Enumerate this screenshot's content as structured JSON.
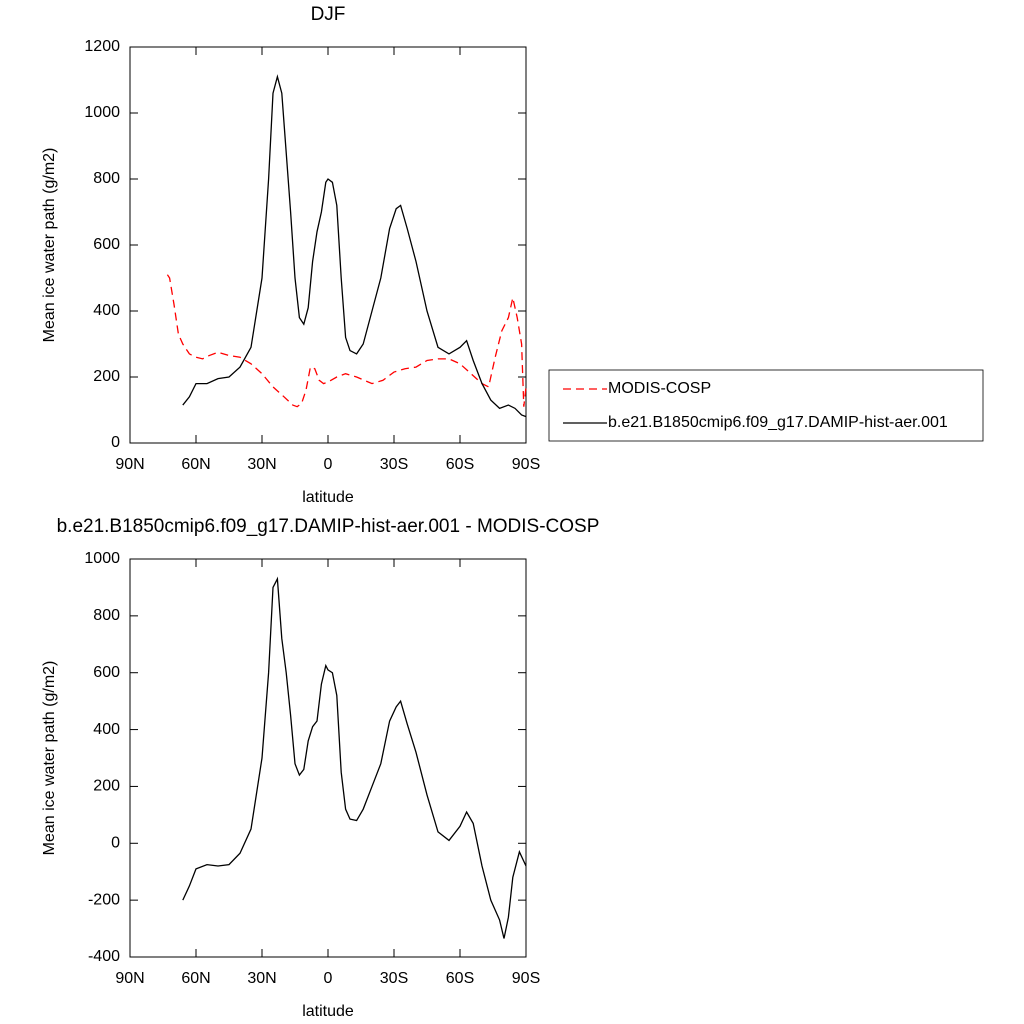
{
  "chart_data": [
    {
      "type": "line",
      "title": "DJF",
      "xlabel": "latitude",
      "ylabel": "Mean ice water path (g/m2)",
      "xlim": [
        90,
        -90
      ],
      "xticks": [
        {
          "value": 90,
          "label": "90N"
        },
        {
          "value": 60,
          "label": "60N"
        },
        {
          "value": 30,
          "label": "30N"
        },
        0,
        {
          "value": -30,
          "label": "30S"
        },
        {
          "value": -60,
          "label": "60S"
        },
        {
          "value": -90,
          "label": "90S"
        }
      ],
      "ylim": [
        0,
        1200
      ],
      "yticks": [
        0,
        200,
        400,
        600,
        800,
        1000,
        1200
      ],
      "legend": "right",
      "series": [
        {
          "name": "MODIS-COSP",
          "color": "#ff0000",
          "dash": "dashed",
          "x": [
            73,
            72,
            70,
            68,
            66,
            63,
            60,
            57,
            54,
            50,
            45,
            40,
            35,
            30,
            25,
            20,
            16,
            14,
            12,
            10,
            8,
            6,
            4,
            2,
            0,
            -4,
            -8,
            -13,
            -20,
            -25,
            -30,
            -35,
            -40,
            -45,
            -50,
            -55,
            -60,
            -65,
            -70,
            -73,
            -76,
            -79,
            -82,
            -84,
            -86,
            -88,
            -89,
            -90
          ],
          "values": [
            510,
            500,
            420,
            330,
            300,
            270,
            260,
            255,
            265,
            275,
            265,
            260,
            240,
            210,
            170,
            140,
            115,
            110,
            120,
            160,
            230,
            225,
            190,
            180,
            185,
            200,
            210,
            200,
            180,
            190,
            215,
            225,
            230,
            250,
            255,
            255,
            240,
            210,
            180,
            170,
            260,
            340,
            380,
            440,
            380,
            300,
            110,
            170
          ]
        },
        {
          "name": "b.e21.B1850cmip6.f09_g17.DAMIP-hist-aer.001",
          "color": "#000000",
          "dash": "solid",
          "x": [
            66,
            63,
            60,
            55,
            50,
            45,
            40,
            35,
            30,
            27,
            25,
            23,
            21,
            19,
            17,
            15,
            13,
            11,
            9,
            7,
            5,
            3,
            1,
            0,
            -2,
            -4,
            -6,
            -8,
            -10,
            -13,
            -16,
            -20,
            -24,
            -28,
            -31,
            -33,
            -36,
            -40,
            -45,
            -50,
            -55,
            -60,
            -63,
            -66,
            -70,
            -74,
            -78,
            -82,
            -85,
            -88,
            -90
          ],
          "values": [
            115,
            140,
            180,
            180,
            195,
            200,
            230,
            290,
            500,
            800,
            1060,
            1110,
            1060,
            880,
            700,
            500,
            380,
            360,
            410,
            550,
            640,
            700,
            790,
            800,
            790,
            720,
            500,
            320,
            280,
            270,
            300,
            400,
            500,
            650,
            710,
            720,
            650,
            550,
            400,
            290,
            270,
            290,
            310,
            250,
            180,
            130,
            105,
            115,
            105,
            85,
            80
          ]
        }
      ]
    },
    {
      "type": "line",
      "title": "b.e21.B1850cmip6.f09_g17.DAMIP-hist-aer.001 - MODIS-COSP",
      "xlabel": "latitude",
      "ylabel": "Mean ice water path (g/m2)",
      "xlim": [
        90,
        -90
      ],
      "xticks": [
        {
          "value": 90,
          "label": "90N"
        },
        {
          "value": 60,
          "label": "60N"
        },
        {
          "value": 30,
          "label": "30N"
        },
        0,
        {
          "value": -30,
          "label": "30S"
        },
        {
          "value": -60,
          "label": "60S"
        },
        {
          "value": -90,
          "label": "90S"
        }
      ],
      "ylim": [
        -400,
        1000
      ],
      "yticks": [
        -400,
        -200,
        0,
        200,
        400,
        600,
        800,
        1000
      ],
      "series": [
        {
          "color": "#000000",
          "dash": "solid",
          "x": [
            66,
            63,
            60,
            55,
            50,
            45,
            40,
            35,
            30,
            27,
            25,
            23,
            21,
            19,
            17,
            15,
            13,
            11,
            9,
            7,
            5,
            3,
            1,
            0,
            -2,
            -4,
            -6,
            -8,
            -10,
            -13,
            -16,
            -20,
            -24,
            -28,
            -31,
            -33,
            -36,
            -40,
            -45,
            -50,
            -55,
            -60,
            -63,
            -66,
            -70,
            -74,
            -78,
            -80,
            -82,
            -84,
            -87,
            -90
          ],
          "values": [
            -200,
            -150,
            -90,
            -75,
            -80,
            -75,
            -35,
            50,
            300,
            600,
            900,
            930,
            720,
            600,
            450,
            280,
            240,
            260,
            360,
            410,
            430,
            560,
            625,
            610,
            600,
            520,
            250,
            120,
            85,
            80,
            120,
            200,
            280,
            430,
            480,
            500,
            420,
            320,
            170,
            40,
            10,
            60,
            110,
            70,
            -80,
            -200,
            -270,
            -335,
            -260,
            -120,
            -30,
            -80
          ]
        }
      ]
    }
  ]
}
